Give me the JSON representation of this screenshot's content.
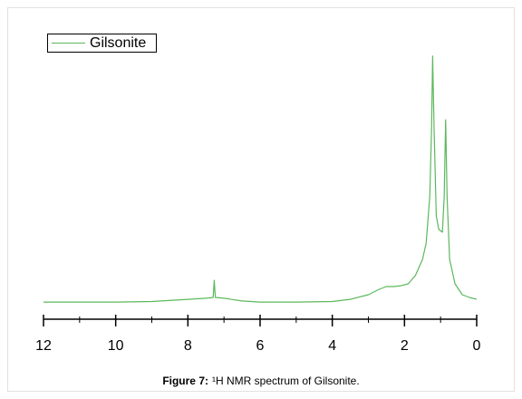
{
  "chart_data": {
    "type": "line",
    "series": [
      {
        "name": "Gilsonite",
        "color": "#5cb85c",
        "x": [
          12,
          10,
          9,
          8,
          7.5,
          7.3,
          7.27,
          7.24,
          7,
          6.5,
          6,
          5,
          4,
          3.5,
          3,
          2.7,
          2.5,
          2.3,
          2.1,
          1.9,
          1.7,
          1.5,
          1.4,
          1.3,
          1.25,
          1.22,
          1.18,
          1.12,
          1.05,
          0.95,
          0.9,
          0.86,
          0.82,
          0.75,
          0.6,
          0.4,
          0.2,
          0
        ],
        "values": [
          6.3,
          6.3,
          6.5,
          7.3,
          7.7,
          8,
          14.3,
          8,
          7.7,
          6.7,
          6.3,
          6.3,
          6.5,
          7.3,
          9,
          11,
          12,
          12,
          12.3,
          13,
          16,
          22,
          28,
          45,
          70,
          96.7,
          70,
          38,
          33,
          32,
          45,
          73.3,
          45,
          22,
          13,
          9,
          8,
          7.3
        ]
      }
    ],
    "xlim": [
      12,
      0
    ],
    "xticks": [
      12,
      10,
      8,
      6,
      4,
      2,
      0
    ],
    "xminorticks": [
      11,
      9,
      7,
      5,
      3,
      1
    ],
    "ylim": [
      0,
      100
    ],
    "caption_label": "Figure 7:",
    "caption_text": "¹H NMR spectrum of Gilsonite."
  }
}
